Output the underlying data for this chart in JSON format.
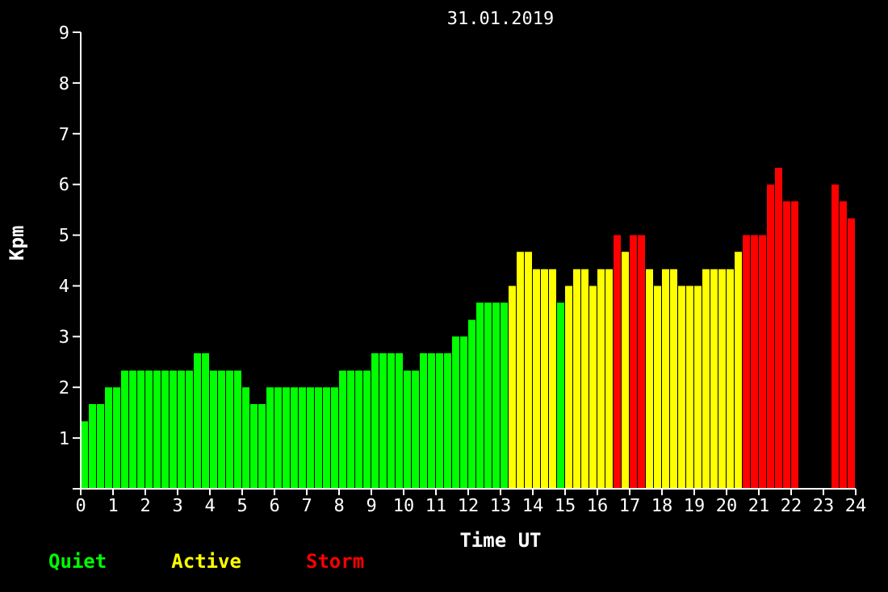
{
  "chart_data": {
    "type": "bar",
    "title": "31.01.2019",
    "xlabel": "Time UT",
    "ylabel": "Kpm",
    "stacked": true,
    "legend": "bottom left",
    "grid": false,
    "x": [
      0.125,
      0.375,
      0.625,
      0.875,
      1.125,
      1.375,
      1.625,
      1.875,
      2.125,
      2.375,
      2.625,
      2.875,
      3.125,
      3.375,
      3.625,
      3.875,
      4.125,
      4.375,
      4.625,
      4.875,
      5.125,
      5.375,
      5.625,
      5.875,
      6.125,
      6.375,
      6.625,
      6.875,
      7.125,
      7.375,
      7.625,
      7.875,
      8.125,
      8.375,
      8.625,
      8.875,
      9.125,
      9.375,
      9.625,
      9.875,
      10.125,
      10.375,
      10.625,
      10.875,
      11.125,
      11.375,
      11.625,
      11.875,
      12.125,
      12.375,
      12.625,
      12.875,
      13.125,
      13.375,
      13.625,
      13.875,
      14.125,
      14.375,
      14.625,
      14.875,
      15.125,
      15.375,
      15.625,
      15.875,
      16.125,
      16.375,
      16.625,
      16.875,
      17.125,
      17.375,
      17.625,
      17.875,
      18.125,
      18.375,
      18.625,
      18.875,
      19.125,
      19.375,
      19.625,
      19.875,
      20.125,
      20.375,
      20.625,
      20.875,
      21.125,
      21.375,
      21.625,
      21.875,
      22.125,
      22.375,
      22.625,
      22.875,
      23.125,
      23.375,
      23.625,
      23.875
    ],
    "series": [
      {
        "name": "Quiet",
        "color": "#00ff00",
        "values": [
          1.33,
          1.67,
          1.67,
          2,
          2,
          2.33,
          2.33,
          2.33,
          2.33,
          2.33,
          2.33,
          2.33,
          2.33,
          2.33,
          2.67,
          2.67,
          2.33,
          2.33,
          2.33,
          2.33,
          2,
          1.67,
          1.67,
          2,
          2,
          2,
          2,
          2,
          2,
          2,
          2,
          2,
          2.33,
          2.33,
          2.33,
          2.33,
          2.67,
          2.67,
          2.67,
          2.67,
          2.33,
          2.33,
          2.67,
          2.67,
          2.67,
          2.67,
          3,
          3,
          3.33,
          3.67,
          3.67,
          3.67,
          3.67,
          null,
          null,
          null,
          null,
          null,
          null,
          3.67,
          null,
          null,
          null,
          null,
          null,
          null,
          null,
          null,
          null,
          null,
          null,
          null,
          null,
          null,
          null,
          null,
          null,
          null,
          null,
          null,
          null,
          null,
          null,
          null,
          null,
          null,
          null,
          null,
          null,
          null,
          null,
          null,
          null,
          null,
          null,
          null
        ]
      },
      {
        "name": "Active",
        "color": "#ffff00",
        "values": [
          null,
          null,
          null,
          null,
          null,
          null,
          null,
          null,
          null,
          null,
          null,
          null,
          null,
          null,
          null,
          null,
          null,
          null,
          null,
          null,
          null,
          null,
          null,
          null,
          null,
          null,
          null,
          null,
          null,
          null,
          null,
          null,
          null,
          null,
          null,
          null,
          null,
          null,
          null,
          null,
          null,
          null,
          null,
          null,
          null,
          null,
          null,
          null,
          null,
          null,
          null,
          null,
          null,
          4,
          4.67,
          4.67,
          4.33,
          4.33,
          4.33,
          null,
          4,
          4.33,
          4.33,
          4,
          4.33,
          4.33,
          null,
          4.67,
          null,
          null,
          4.33,
          4,
          4.33,
          4.33,
          4,
          4,
          4,
          4.33,
          4.33,
          4.33,
          4.33,
          4.67,
          null,
          null,
          null,
          null,
          null,
          null,
          null,
          null,
          null,
          null,
          null,
          null,
          null,
          null
        ]
      },
      {
        "name": "Storm",
        "color": "#ff0000",
        "values": [
          null,
          null,
          null,
          null,
          null,
          null,
          null,
          null,
          null,
          null,
          null,
          null,
          null,
          null,
          null,
          null,
          null,
          null,
          null,
          null,
          null,
          null,
          null,
          null,
          null,
          null,
          null,
          null,
          null,
          null,
          null,
          null,
          null,
          null,
          null,
          null,
          null,
          null,
          null,
          null,
          null,
          null,
          null,
          null,
          null,
          null,
          null,
          null,
          null,
          null,
          null,
          null,
          null,
          null,
          null,
          null,
          null,
          null,
          null,
          null,
          null,
          null,
          null,
          null,
          null,
          null,
          5,
          null,
          5,
          5,
          null,
          null,
          null,
          null,
          null,
          null,
          null,
          null,
          null,
          null,
          null,
          null,
          5,
          5,
          5,
          6,
          6.33,
          5.67,
          5.67,
          null,
          null,
          null,
          null,
          6,
          5.67,
          5.33
        ]
      }
    ],
    "xlim": [
      0,
      24
    ],
    "xticks": [
      0,
      1,
      2,
      3,
      4,
      5,
      6,
      7,
      8,
      9,
      10,
      11,
      12,
      13,
      14,
      15,
      16,
      17,
      18,
      19,
      20,
      21,
      22,
      23,
      24
    ],
    "ylim": [
      0,
      9
    ],
    "yticks": [
      {
        "value": 0,
        "label": null
      },
      1,
      2,
      3,
      4,
      5,
      6,
      7,
      8,
      9
    ]
  }
}
